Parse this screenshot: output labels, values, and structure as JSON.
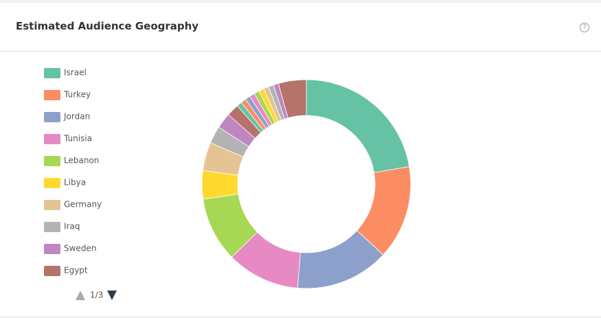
{
  "chart_data": {
    "type": "donut",
    "title": "Estimated Audience Geography",
    "categories": [
      "Israel",
      "Turkey",
      "Jordan",
      "Tunisia",
      "Lebanon",
      "Libya",
      "Germany",
      "Iraq",
      "Sweden",
      "Egypt",
      null,
      null,
      null,
      null,
      null,
      null,
      null,
      null,
      null,
      null
    ],
    "values": [
      22.3,
      14.5,
      14.5,
      11.3,
      10.0,
      4.4,
      4.4,
      2.7,
      2.4,
      1.9,
      0.8,
      0.8,
      0.8,
      0.8,
      0.8,
      0.8,
      0.8,
      0.8,
      0.8,
      4.3
    ],
    "colors": [
      "#66c2a5",
      "#fc8d62",
      "#8da0cb",
      "#e78ac3",
      "#a6d854",
      "#ffd92f",
      "#e5c494",
      "#b3b3b3",
      "#bf86c2",
      "#b5736a",
      "#66c2a5",
      "#fc8d62",
      "#8da0cb",
      "#e78ac3",
      "#a6d854",
      "#ffd92f",
      "#e5c494",
      "#b3b3b3",
      "#bf86c2",
      "#b5736a"
    ],
    "legend_page": "1/3"
  }
}
